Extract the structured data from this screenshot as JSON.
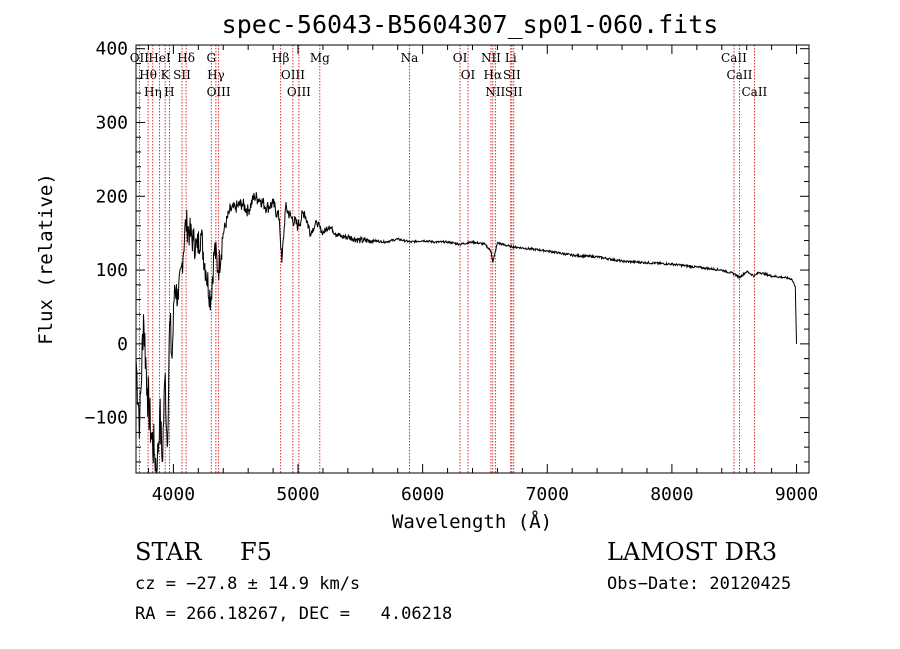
{
  "chart_data": {
    "type": "line",
    "title": "spec-56043-B5604307_sp01-060.fits",
    "xlabel": "Wavelength (Å)",
    "ylabel": "Flux (relative)",
    "xlim": [
      3700,
      9100
    ],
    "ylim": [
      -175,
      405
    ],
    "x_ticks": [
      4000,
      5000,
      6000,
      7000,
      8000,
      9000
    ],
    "x_tick_labels": [
      "4000",
      "5000",
      "6000",
      "7000",
      "8000",
      "9000"
    ],
    "y_ticks": [
      -100,
      0,
      100,
      200,
      300,
      400
    ],
    "y_tick_labels": [
      "−100",
      "0",
      "100",
      "200",
      "300",
      "400"
    ],
    "series": [
      {
        "name": "flux",
        "x": [
          3700,
          3730,
          3760,
          3790,
          3820,
          3850,
          3870,
          3890,
          3910,
          3935,
          3950,
          3970,
          3990,
          4010,
          4040,
          4070,
          4100,
          4130,
          4160,
          4190,
          4220,
          4260,
          4300,
          4330,
          4360,
          4400,
          4450,
          4500,
          4550,
          4600,
          4650,
          4700,
          4750,
          4800,
          4850,
          4870,
          4900,
          4950,
          5000,
          5050,
          5100,
          5150,
          5200,
          5250,
          5300,
          5350,
          5400,
          5500,
          5600,
          5700,
          5800,
          5900,
          6000,
          6100,
          6200,
          6300,
          6400,
          6500,
          6550,
          6563,
          6600,
          6700,
          6800,
          6900,
          7000,
          7200,
          7400,
          7600,
          7800,
          8000,
          8200,
          8400,
          8498,
          8542,
          8600,
          8662,
          8700,
          8800,
          8900,
          8960,
          8990,
          9000
        ],
        "y": [
          -20,
          -110,
          40,
          -60,
          -120,
          -150,
          -170,
          -90,
          -160,
          -40,
          -140,
          30,
          -20,
          80,
          60,
          110,
          165,
          150,
          140,
          130,
          150,
          100,
          60,
          130,
          100,
          150,
          180,
          185,
          190,
          180,
          200,
          195,
          185,
          190,
          170,
          110,
          185,
          170,
          160,
          180,
          150,
          165,
          150,
          160,
          150,
          145,
          145,
          140,
          140,
          138,
          142,
          138,
          140,
          138,
          138,
          135,
          138,
          135,
          125,
          110,
          137,
          132,
          130,
          128,
          126,
          120,
          118,
          112,
          110,
          108,
          104,
          100,
          95,
          90,
          98,
          92,
          97,
          92,
          90,
          88,
          78,
          0
        ]
      }
    ],
    "lines": [
      {
        "name": "OII",
        "x": 3727
      },
      {
        "name": "Hθ",
        "x": 3797
      },
      {
        "name": "Hη",
        "x": 3835
      },
      {
        "name": "HeI",
        "x": 3889
      },
      {
        "name": "K",
        "x": 3934
      },
      {
        "name": "H",
        "x": 3968
      },
      {
        "name": "SII",
        "x": 4069
      },
      {
        "name": "Hδ",
        "x": 4102
      },
      {
        "name": "G",
        "x": 4304
      },
      {
        "name": "Hγ",
        "x": 4341
      },
      {
        "name": "OIII",
        "x": 4363
      },
      {
        "name": "Hβ",
        "x": 4861
      },
      {
        "name": "OIII",
        "x": 4959
      },
      {
        "name": "OIII",
        "x": 5007
      },
      {
        "name": "Mg",
        "x": 5175
      },
      {
        "name": "Na",
        "x": 5894
      },
      {
        "name": "OI",
        "x": 6300
      },
      {
        "name": "OI",
        "x": 6364
      },
      {
        "name": "NII",
        "x": 6548
      },
      {
        "name": "Hα",
        "x": 6563
      },
      {
        "name": "NII",
        "x": 6583
      },
      {
        "name": "Li",
        "x": 6707
      },
      {
        "name": "SII",
        "x": 6716
      },
      {
        "name": "SII",
        "x": 6731
      },
      {
        "name": "CaII",
        "x": 8498
      },
      {
        "name": "CaII",
        "x": 8542
      },
      {
        "name": "CaII",
        "x": 8662
      }
    ],
    "line_color": "#cc0000",
    "series_color": "#000000"
  },
  "info": {
    "object_type": "STAR",
    "subclass": "F5",
    "survey": "LAMOST DR3",
    "redshift": "cz = −27.8 ± 14.9 km/s",
    "obs_date": "Obs−Date: 20120425",
    "coords": "RA = 266.18267, DEC =   4.06218"
  }
}
